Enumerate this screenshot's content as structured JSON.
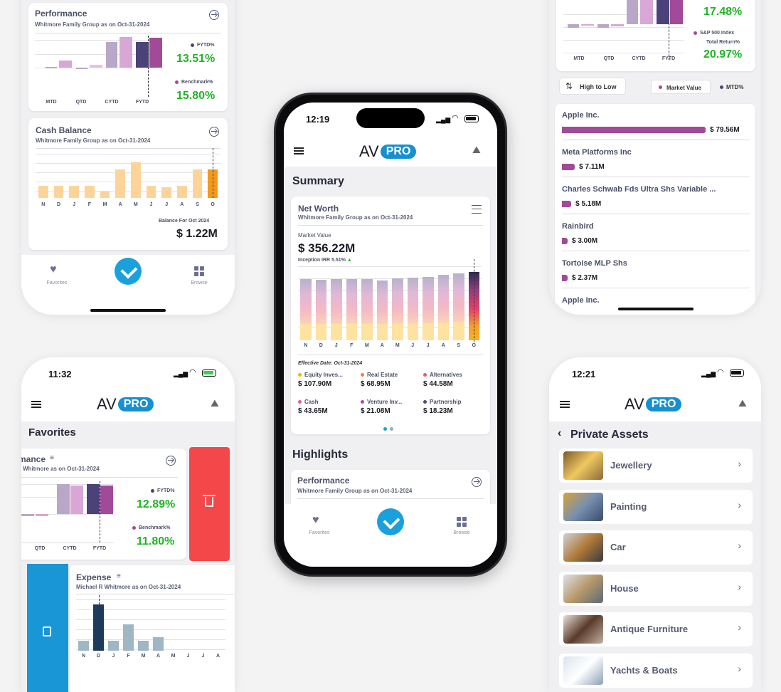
{
  "tl": {
    "perf": {
      "title": "Performance",
      "sub": "Whitmore Family Group as on Oct-31-2024",
      "cats": [
        "MTD",
        "QTD",
        "CYTD",
        "FYTD"
      ],
      "fytd_label": "FYTD%",
      "fytd": "13.51%",
      "bench_label": "Benchmark%",
      "bench": "15.80%"
    },
    "cash": {
      "title": "Cash Balance",
      "sub": "Whitmore Family Group as on Oct-31-2024",
      "months": [
        "N",
        "D",
        "J",
        "F",
        "M",
        "A",
        "M",
        "J",
        "J",
        "A",
        "S",
        "O"
      ],
      "values": [
        0.27,
        0.27,
        0.27,
        0.27,
        0.14,
        0.64,
        0.8,
        0.27,
        0.25,
        0.27,
        0.64,
        0.64
      ],
      "bal_label": "Balance For Oct 2024",
      "bal": "$ 1.22M"
    },
    "tab": {
      "fav": "Favorites",
      "browse": "Browse"
    }
  },
  "tr": {
    "cats": [
      "MTD",
      "QTD",
      "CYTD",
      "FYTD"
    ],
    "v1": "17.48%",
    "sp_label": "S&P 500 Index",
    "tr_label": "Total Return%",
    "v2": "20.97%",
    "sort": "High to Low",
    "leg1": "Market Value",
    "leg2": "MTD%",
    "holdings": [
      {
        "name": "Apple Inc.",
        "value": "$ 79.56M",
        "frac": 1.0
      },
      {
        "name": "Meta Platforms Inc",
        "value": "$ 7.11M",
        "frac": 0.09
      },
      {
        "name": "Charles Schwab Fds Ultra Shs Variable ...",
        "value": "$ 5.18M",
        "frac": 0.065
      },
      {
        "name": "Rainbird",
        "value": "$ 3.00M",
        "frac": 0.038
      },
      {
        "name": "Tortoise MLP Shs",
        "value": "$ 2.37M",
        "frac": 0.03
      },
      {
        "name": "Apple Inc.",
        "value": "",
        "frac": 0
      }
    ]
  },
  "center": {
    "time": "12:19",
    "logo_av": "AV",
    "logo_pro": "PRO",
    "summary": "Summary",
    "nw_title": "Net Worth",
    "nw_sub": "Whitmore Family Group as on Oct-31-2024",
    "mv_label": "Market Value",
    "mv": "$ 356.22M",
    "irr": "Inception IRR 5.51%",
    "months": [
      "N",
      "D",
      "J",
      "F",
      "M",
      "A",
      "M",
      "J",
      "J",
      "A",
      "S",
      "O"
    ],
    "heights": [
      0.9,
      0.89,
      0.9,
      0.9,
      0.9,
      0.88,
      0.91,
      0.92,
      0.93,
      0.96,
      0.98,
      1.0
    ],
    "eff": "Effective Date: Oct-31-2024",
    "legend": [
      {
        "name": "Equity Inves...",
        "value": "$ 107.90M",
        "color": "#f4b400"
      },
      {
        "name": "Real Estate",
        "value": "$ 68.95M",
        "color": "#f77b46"
      },
      {
        "name": "Alternatives",
        "value": "$ 44.58M",
        "color": "#ec5a6a"
      },
      {
        "name": "Cash",
        "value": "$ 43.65M",
        "color": "#e85e8a"
      },
      {
        "name": "Venture Inv...",
        "value": "$ 21.08M",
        "color": "#a14ea4"
      },
      {
        "name": "Partnership",
        "value": "$ 18.23M",
        "color": "#4d4a7c"
      }
    ],
    "highlights": "Highlights",
    "perf_title": "Performance",
    "perf_sub": "Whitmore Family Group as on Oct-31-2024",
    "fav": "Favorites",
    "browse": "Browse"
  },
  "bl": {
    "time": "11:32",
    "logo_av": "AV",
    "logo_pro": "PRO",
    "favorites": "Favorites",
    "perf_title": "mance",
    "perf_sub": "Whitmore as on Oct-31-2024",
    "cats": [
      "QTD",
      "CYTD",
      "FYTD"
    ],
    "fytd_label": "FYTD%",
    "fytd": "12.89%",
    "bench_label": "Benchmark%",
    "bench": "11.80%",
    "exp_title": "Expense",
    "exp_sub": "Michael R Whitmore as on Oct-31-2024",
    "months": [
      "N",
      "D",
      "J",
      "F",
      "M",
      "A",
      "M",
      "J",
      "J",
      "A"
    ],
    "values": [
      0.2,
      0.9,
      0.2,
      0.52,
      0.2,
      0.27,
      0,
      0,
      0,
      0
    ]
  },
  "br": {
    "time": "12:21",
    "logo_av": "AV",
    "logo_pro": "PRO",
    "title": "Private Assets",
    "items": [
      "Jewellery",
      "Painting",
      "Car",
      "House",
      "Antique Furniture",
      "Yachts & Boats"
    ]
  }
}
